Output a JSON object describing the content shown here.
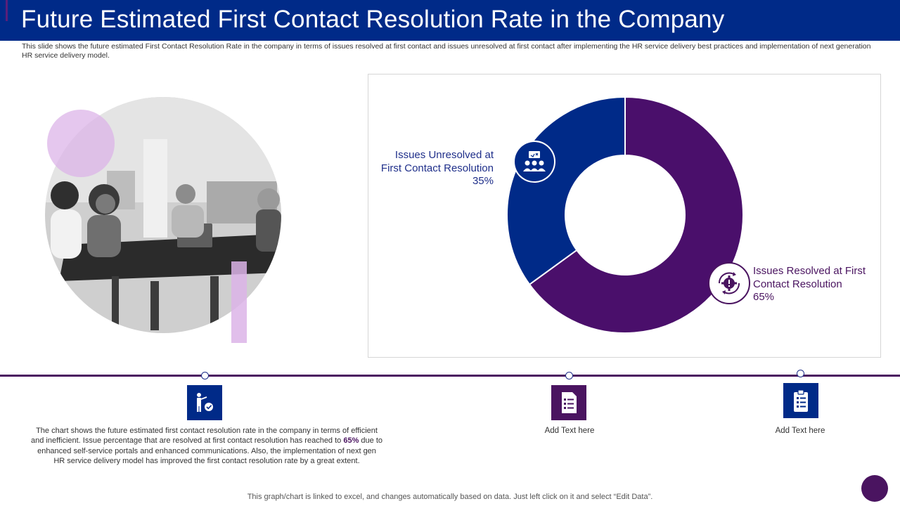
{
  "header": {
    "title": "Future Estimated First Contact Resolution Rate in the Company"
  },
  "subtitle": "This slide shows the future estimated First Contact Resolution Rate in the company in terms of issues resolved at first contact and issues unresolved at first contact after implementing the HR service delivery best practices and implementation of next generation HR service delivery model.",
  "chart_data": {
    "type": "pie",
    "variant": "donut",
    "categories": [
      "Issues Resolved at First Contact Resolution",
      "Issues Unresolved at First Contact Resolution"
    ],
    "values": [
      65,
      35
    ],
    "unit": "%",
    "colors": [
      "#4a0f6b",
      "#002a88"
    ],
    "labels": {
      "unresolved": {
        "name": "Issues Unresolved at First Contact Resolution",
        "value": "35%"
      },
      "resolved": {
        "name": "Issues Resolved at First Contact Resolution",
        "value": "65%"
      }
    }
  },
  "bottom": {
    "description_pre": "The chart shows the future estimated first contact resolution rate in the company in terms of efficient and inefficient. Issue percentage that are resolved at first contact resolution has reached to ",
    "description_highlight": "65%",
    "description_post": " due to enhanced self-service portals and enhanced communications. Also, the implementation of next gen HR service delivery model has improved the first contact resolution rate by a great extent.",
    "add_text_1": "Add Text here",
    "add_text_2": "Add Text here"
  },
  "footer": {
    "note": "This graph/chart is linked to excel,  and changes automatically based on data. Just left click on it and select “Edit Data”."
  },
  "icons": {
    "unresolved": "team-meeting-icon",
    "resolved": "gear-cycle-icon",
    "step1": "person-gear-icon",
    "step2": "document-list-icon",
    "step3": "clipboard-checklist-icon"
  },
  "colors": {
    "header": "#002a88",
    "accent_purple": "#4a1460",
    "accent_blue": "#002a88",
    "decor_lilac": "#dcb4e8"
  }
}
